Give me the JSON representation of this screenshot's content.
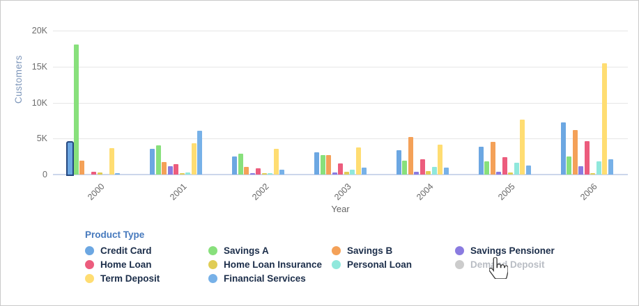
{
  "chart_data": {
    "type": "bar",
    "title": "",
    "xlabel": "Year",
    "ylabel": "Customers",
    "categories": [
      "2000",
      "2001",
      "2002",
      "2003",
      "2004",
      "2005",
      "2006"
    ],
    "ylim": [
      0,
      20000
    ],
    "ytick_step": 5000,
    "ytick_labels": [
      "0",
      "5K",
      "10K",
      "15K",
      "20K"
    ],
    "grid": true,
    "legend_position": "bottom",
    "series": [
      {
        "name": "Credit Card",
        "color": "#6ca7e2",
        "enabled": true,
        "values": [
          4400,
          3600,
          2500,
          3100,
          3400,
          3900,
          7200
        ]
      },
      {
        "name": "Savings A",
        "color": "#88e07c",
        "enabled": true,
        "values": [
          18100,
          4050,
          2900,
          2700,
          1900,
          1800,
          2500
        ]
      },
      {
        "name": "Savings B",
        "color": "#f4a158",
        "enabled": true,
        "values": [
          1950,
          1700,
          1050,
          2700,
          5200,
          4500,
          6200
        ]
      },
      {
        "name": "Savings Pensioner",
        "color": "#8a7be0",
        "enabled": true,
        "values": [
          0,
          1150,
          150,
          300,
          350,
          350,
          1200
        ]
      },
      {
        "name": "Home Loan",
        "color": "#ec5c7d",
        "enabled": true,
        "values": [
          400,
          1450,
          900,
          1500,
          2100,
          2400,
          4600
        ]
      },
      {
        "name": "Home Loan Insurance",
        "color": "#e0cd55",
        "enabled": true,
        "values": [
          250,
          200,
          200,
          350,
          500,
          250,
          150
        ]
      },
      {
        "name": "Personal Loan",
        "color": "#90e8dc",
        "enabled": true,
        "values": [
          0,
          300,
          200,
          700,
          1100,
          1600,
          1850
        ]
      },
      {
        "name": "Demand Deposit",
        "color": "#c9cdd4",
        "enabled": false,
        "values": null
      },
      {
        "name": "Term Deposit",
        "color": "#ffdd72",
        "enabled": true,
        "values": [
          3700,
          4350,
          3600,
          3800,
          4200,
          7600,
          15500
        ]
      },
      {
        "name": "Financial Services",
        "color": "#77b1e8",
        "enabled": true,
        "values": [
          150,
          6100,
          700,
          950,
          1000,
          1250,
          2100
        ]
      }
    ],
    "selected_point": {
      "series": "Credit Card",
      "category": "2000"
    },
    "selection_border_color": "#24477f"
  },
  "legend": {
    "title": "Product Type",
    "items": [
      {
        "label": "Credit Card",
        "color": "#6ca7e2",
        "enabled": true
      },
      {
        "label": "Savings A",
        "color": "#88e07c",
        "enabled": true
      },
      {
        "label": "Savings B",
        "color": "#f4a158",
        "enabled": true
      },
      {
        "label": "Savings Pensioner",
        "color": "#8a7be0",
        "enabled": true
      },
      {
        "label": "Home Loan",
        "color": "#ec5c7d",
        "enabled": true
      },
      {
        "label": "Home Loan Insurance",
        "color": "#e0cd55",
        "enabled": true
      },
      {
        "label": "Personal Loan",
        "color": "#90e8dc",
        "enabled": true
      },
      {
        "label": "Demand Deposit",
        "color": "#cccccc",
        "enabled": false
      },
      {
        "label": "Term Deposit",
        "color": "#ffdd72",
        "enabled": true
      },
      {
        "label": "Financial Services",
        "color": "#77b1e8",
        "enabled": true
      }
    ]
  },
  "icons": {
    "cursor": "hand-pointer-icon"
  }
}
